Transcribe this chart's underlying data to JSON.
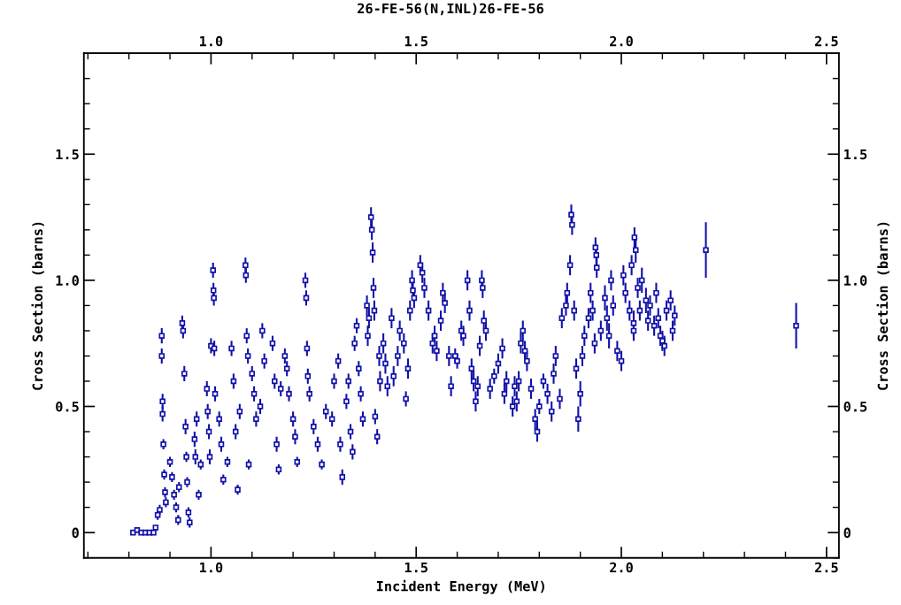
{
  "chart_data": {
    "type": "scatter",
    "title": "26-FE-56(N,INL)26-FE-56",
    "xlabel": "Incident Energy (MeV)",
    "ylabel": "Cross Section (barns)",
    "y2label": "Cross Section (barns)",
    "xlim": [
      0.69,
      2.53
    ],
    "ylim": [
      -0.1,
      1.9
    ],
    "x2lim": [
      0.69,
      2.53
    ],
    "y2lim": [
      -0.1,
      1.9
    ],
    "xticks": [
      {
        "value": 0.7,
        "label": null
      },
      {
        "value": 0.8,
        "label": null
      },
      {
        "value": 0.9,
        "label": null
      },
      {
        "value": 1,
        "label": "1.0"
      },
      {
        "value": 1.1,
        "label": null
      },
      {
        "value": 1.2,
        "label": null
      },
      {
        "value": 1.3,
        "label": null
      },
      {
        "value": 1.4,
        "label": null
      },
      1.5,
      {
        "value": 1.6,
        "label": null
      },
      {
        "value": 1.7,
        "label": null
      },
      {
        "value": 1.8,
        "label": null
      },
      {
        "value": 1.9,
        "label": null
      },
      {
        "value": 2,
        "label": "2.0"
      },
      {
        "value": 2.1,
        "label": null
      },
      {
        "value": 2.2,
        "label": null
      },
      {
        "value": 2.3,
        "label": null
      },
      {
        "value": 2.4,
        "label": null
      },
      2.5
    ],
    "x2ticks": [
      {
        "value": 0.7,
        "label": null
      },
      {
        "value": 0.8,
        "label": null
      },
      {
        "value": 0.9,
        "label": null
      },
      {
        "value": 1,
        "label": "1.0"
      },
      {
        "value": 1.1,
        "label": null
      },
      {
        "value": 1.2,
        "label": null
      },
      {
        "value": 1.3,
        "label": null
      },
      {
        "value": 1.4,
        "label": null
      },
      1.5,
      {
        "value": 1.6,
        "label": null
      },
      {
        "value": 1.7,
        "label": null
      },
      {
        "value": 1.8,
        "label": null
      },
      {
        "value": 1.9,
        "label": null
      },
      {
        "value": 2,
        "label": "2.0"
      },
      {
        "value": 2.1,
        "label": null
      },
      {
        "value": 2.2,
        "label": null
      },
      {
        "value": 2.3,
        "label": null
      },
      {
        "value": 2.4,
        "label": null
      },
      2.5
    ],
    "yticks": [
      {
        "value": -0.1,
        "label": null
      },
      0,
      {
        "value": 0.1,
        "label": null
      },
      {
        "value": 0.2,
        "label": null
      },
      {
        "value": 0.3,
        "label": null
      },
      {
        "value": 0.4,
        "label": null
      },
      0.5,
      {
        "value": 0.6,
        "label": null
      },
      {
        "value": 0.7,
        "label": null
      },
      {
        "value": 0.8,
        "label": null
      },
      {
        "value": 0.9,
        "label": null
      },
      {
        "value": 1,
        "label": "1.0"
      },
      {
        "value": 1.1,
        "label": null
      },
      {
        "value": 1.2,
        "label": null
      },
      {
        "value": 1.3,
        "label": null
      },
      {
        "value": 1.4,
        "label": null
      },
      1.5,
      {
        "value": 1.6,
        "label": null
      },
      {
        "value": 1.7,
        "label": null
      },
      {
        "value": 1.8,
        "label": null
      }
    ],
    "y2ticks": [
      {
        "value": -0.1,
        "label": null
      },
      0,
      {
        "value": 0.1,
        "label": null
      },
      {
        "value": 0.2,
        "label": null
      },
      {
        "value": 0.3,
        "label": null
      },
      {
        "value": 0.4,
        "label": null
      },
      0.5,
      {
        "value": 0.6,
        "label": null
      },
      {
        "value": 0.7,
        "label": null
      },
      {
        "value": 0.8,
        "label": null
      },
      {
        "value": 0.9,
        "label": null
      },
      {
        "value": 1,
        "label": "1.0"
      },
      {
        "value": 1.1,
        "label": null
      },
      {
        "value": 1.2,
        "label": null
      },
      {
        "value": 1.3,
        "label": null
      },
      {
        "value": 1.4,
        "label": null
      },
      1.5,
      {
        "value": 1.6,
        "label": null
      },
      {
        "value": 1.7,
        "label": null
      },
      {
        "value": 1.8,
        "label": null
      }
    ],
    "marker": "square",
    "grid": false,
    "legend": false,
    "series": [
      {
        "color": "#1010a8",
        "x": [
          0.81,
          0.82,
          0.83,
          0.84,
          0.85,
          0.86,
          0.865,
          0.87,
          0.875,
          0.88,
          0.88,
          0.882,
          0.882,
          0.884,
          0.886,
          0.888,
          0.89,
          0.9,
          0.905,
          0.91,
          0.915,
          0.92,
          0.922,
          0.93,
          0.932,
          0.935,
          0.938,
          0.94,
          0.942,
          0.945,
          0.948,
          0.96,
          0.962,
          0.965,
          0.97,
          0.975,
          0.99,
          0.992,
          0.995,
          0.997,
          1.0,
          1.005,
          1.006,
          1.007,
          1.008,
          1.01,
          1.02,
          1.025,
          1.03,
          1.04,
          1.05,
          1.055,
          1.06,
          1.065,
          1.07,
          1.084,
          1.085,
          1.087,
          1.09,
          1.092,
          1.1,
          1.105,
          1.11,
          1.12,
          1.125,
          1.13,
          1.15,
          1.155,
          1.16,
          1.165,
          1.17,
          1.18,
          1.185,
          1.19,
          1.2,
          1.205,
          1.21,
          1.23,
          1.232,
          1.234,
          1.236,
          1.24,
          1.25,
          1.26,
          1.27,
          1.28,
          1.295,
          1.3,
          1.31,
          1.315,
          1.32,
          1.33,
          1.335,
          1.34,
          1.345,
          1.35,
          1.355,
          1.36,
          1.365,
          1.37,
          1.38,
          1.382,
          1.385,
          1.39,
          1.392,
          1.394,
          1.396,
          1.398,
          1.4,
          1.405,
          1.41,
          1.412,
          1.42,
          1.425,
          1.43,
          1.44,
          1.445,
          1.455,
          1.46,
          1.47,
          1.475,
          1.48,
          1.485,
          1.49,
          1.492,
          1.495,
          1.51,
          1.515,
          1.52,
          1.53,
          1.54,
          1.545,
          1.55,
          1.56,
          1.565,
          1.57,
          1.58,
          1.585,
          1.595,
          1.6,
          1.61,
          1.615,
          1.625,
          1.63,
          1.635,
          1.64,
          1.645,
          1.65,
          1.655,
          1.66,
          1.662,
          1.665,
          1.67,
          1.68,
          1.69,
          1.7,
          1.71,
          1.715,
          1.72,
          1.735,
          1.74,
          1.745,
          1.75,
          1.755,
          1.76,
          1.765,
          1.77,
          1.78,
          1.79,
          1.795,
          1.8,
          1.81,
          1.82,
          1.83,
          1.835,
          1.84,
          1.85,
          1.855,
          1.865,
          1.868,
          1.875,
          1.878,
          1.88,
          1.885,
          1.89,
          1.895,
          1.9,
          1.905,
          1.91,
          1.92,
          1.925,
          1.93,
          1.935,
          1.937,
          1.939,
          1.94,
          1.95,
          1.96,
          1.965,
          1.97,
          1.975,
          1.98,
          1.99,
          2.0,
          2.005,
          2.01,
          2.02,
          2.025,
          2.03,
          2.03,
          2.032,
          2.035,
          2.04,
          2.045,
          2.05,
          2.06,
          2.065,
          2.07,
          2.08,
          2.085,
          2.09,
          2.095,
          2.1,
          2.105,
          2.11,
          2.12,
          2.125,
          2.13,
          2.206,
          2.426
        ],
        "values": [
          0,
          0.01,
          0,
          0,
          0,
          0,
          0.02,
          0.07,
          0.09,
          0.78,
          0.7,
          0.52,
          0.47,
          0.35,
          0.23,
          0.16,
          0.12,
          0.28,
          0.22,
          0.15,
          0.1,
          0.05,
          0.18,
          0.83,
          0.8,
          0.63,
          0.42,
          0.3,
          0.2,
          0.08,
          0.04,
          0.37,
          0.3,
          0.45,
          0.15,
          0.27,
          0.57,
          0.48,
          0.4,
          0.3,
          0.74,
          1.04,
          0.96,
          0.93,
          0.73,
          0.55,
          0.45,
          0.35,
          0.21,
          0.28,
          0.73,
          0.6,
          0.4,
          0.17,
          0.48,
          1.06,
          1.02,
          0.78,
          0.7,
          0.27,
          0.63,
          0.55,
          0.45,
          0.5,
          0.8,
          0.68,
          0.75,
          0.6,
          0.35,
          0.25,
          0.57,
          0.7,
          0.65,
          0.55,
          0.45,
          0.38,
          0.28,
          1.0,
          0.93,
          0.73,
          0.62,
          0.55,
          0.42,
          0.35,
          0.27,
          0.48,
          0.45,
          0.6,
          0.68,
          0.35,
          0.22,
          0.52,
          0.6,
          0.4,
          0.32,
          0.75,
          0.82,
          0.65,
          0.55,
          0.45,
          0.9,
          0.78,
          0.85,
          1.25,
          1.2,
          1.11,
          0.97,
          0.88,
          0.46,
          0.38,
          0.7,
          0.6,
          0.75,
          0.67,
          0.58,
          0.85,
          0.62,
          0.7,
          0.8,
          0.75,
          0.53,
          0.65,
          0.88,
          1.0,
          0.96,
          0.93,
          1.06,
          1.03,
          0.97,
          0.88,
          0.75,
          0.78,
          0.72,
          0.84,
          0.95,
          0.91,
          0.7,
          0.58,
          0.7,
          0.68,
          0.8,
          0.78,
          1.0,
          0.88,
          0.65,
          0.6,
          0.52,
          0.58,
          0.74,
          1.0,
          0.97,
          0.84,
          0.8,
          0.57,
          0.62,
          0.67,
          0.73,
          0.55,
          0.6,
          0.5,
          0.58,
          0.52,
          0.6,
          0.75,
          0.8,
          0.72,
          0.68,
          0.57,
          0.45,
          0.4,
          0.5,
          0.6,
          0.55,
          0.48,
          0.63,
          0.7,
          0.53,
          0.85,
          0.9,
          0.95,
          1.06,
          1.26,
          1.22,
          0.88,
          0.65,
          0.45,
          0.55,
          0.7,
          0.78,
          0.85,
          0.95,
          0.88,
          0.75,
          1.13,
          1.1,
          1.05,
          0.8,
          0.93,
          0.85,
          0.78,
          1.0,
          0.9,
          0.72,
          0.68,
          1.02,
          0.95,
          0.88,
          1.06,
          0.83,
          0.8,
          1.17,
          1.12,
          0.97,
          0.88,
          1.0,
          0.92,
          0.84,
          0.9,
          0.82,
          0.95,
          0.85,
          0.78,
          0.76,
          0.74,
          0.88,
          0.92,
          0.8,
          0.86,
          1.12,
          0.82
        ],
        "errors": [
          0.01,
          0.01,
          0.01,
          0.01,
          0.01,
          0.01,
          0.01,
          0.02,
          0.02,
          0.03,
          0.03,
          0.03,
          0.03,
          0.02,
          0.02,
          0.02,
          0.02,
          0.02,
          0.02,
          0.02,
          0.02,
          0.02,
          0.02,
          0.03,
          0.03,
          0.03,
          0.03,
          0.02,
          0.02,
          0.02,
          0.02,
          0.03,
          0.03,
          0.03,
          0.02,
          0.02,
          0.03,
          0.03,
          0.03,
          0.03,
          0.03,
          0.03,
          0.03,
          0.03,
          0.03,
          0.03,
          0.03,
          0.03,
          0.02,
          0.02,
          0.03,
          0.03,
          0.03,
          0.02,
          0.03,
          0.03,
          0.03,
          0.03,
          0.03,
          0.02,
          0.03,
          0.03,
          0.03,
          0.03,
          0.03,
          0.03,
          0.03,
          0.03,
          0.03,
          0.02,
          0.03,
          0.03,
          0.03,
          0.03,
          0.03,
          0.03,
          0.02,
          0.03,
          0.03,
          0.03,
          0.03,
          0.03,
          0.03,
          0.03,
          0.02,
          0.03,
          0.03,
          0.03,
          0.03,
          0.03,
          0.03,
          0.03,
          0.03,
          0.03,
          0.03,
          0.03,
          0.03,
          0.03,
          0.03,
          0.03,
          0.04,
          0.04,
          0.04,
          0.04,
          0.04,
          0.04,
          0.04,
          0.04,
          0.03,
          0.03,
          0.04,
          0.04,
          0.04,
          0.04,
          0.04,
          0.04,
          0.04,
          0.04,
          0.04,
          0.04,
          0.03,
          0.04,
          0.04,
          0.04,
          0.04,
          0.04,
          0.04,
          0.04,
          0.04,
          0.04,
          0.04,
          0.04,
          0.04,
          0.04,
          0.04,
          0.04,
          0.04,
          0.04,
          0.03,
          0.03,
          0.04,
          0.04,
          0.04,
          0.04,
          0.04,
          0.04,
          0.04,
          0.04,
          0.04,
          0.04,
          0.04,
          0.04,
          0.04,
          0.04,
          0.03,
          0.04,
          0.04,
          0.04,
          0.04,
          0.04,
          0.04,
          0.04,
          0.04,
          0.04,
          0.04,
          0.04,
          0.04,
          0.04,
          0.04,
          0.04,
          0.03,
          0.03,
          0.04,
          0.04,
          0.04,
          0.04,
          0.04,
          0.04,
          0.04,
          0.04,
          0.04,
          0.04,
          0.04,
          0.04,
          0.04,
          0.05,
          0.05,
          0.04,
          0.04,
          0.04,
          0.04,
          0.04,
          0.04,
          0.04,
          0.04,
          0.04,
          0.04,
          0.05,
          0.05,
          0.05,
          0.04,
          0.04,
          0.04,
          0.04,
          0.04,
          0.04,
          0.04,
          0.04,
          0.05,
          0.04,
          0.04,
          0.05,
          0.04,
          0.04,
          0.05,
          0.05,
          0.04,
          0.04,
          0.04,
          0.04,
          0.04,
          0.04,
          0.04,
          0.04,
          0.04,
          0.04,
          0.04,
          0.04,
          0.11,
          0.09
        ]
      }
    ]
  }
}
